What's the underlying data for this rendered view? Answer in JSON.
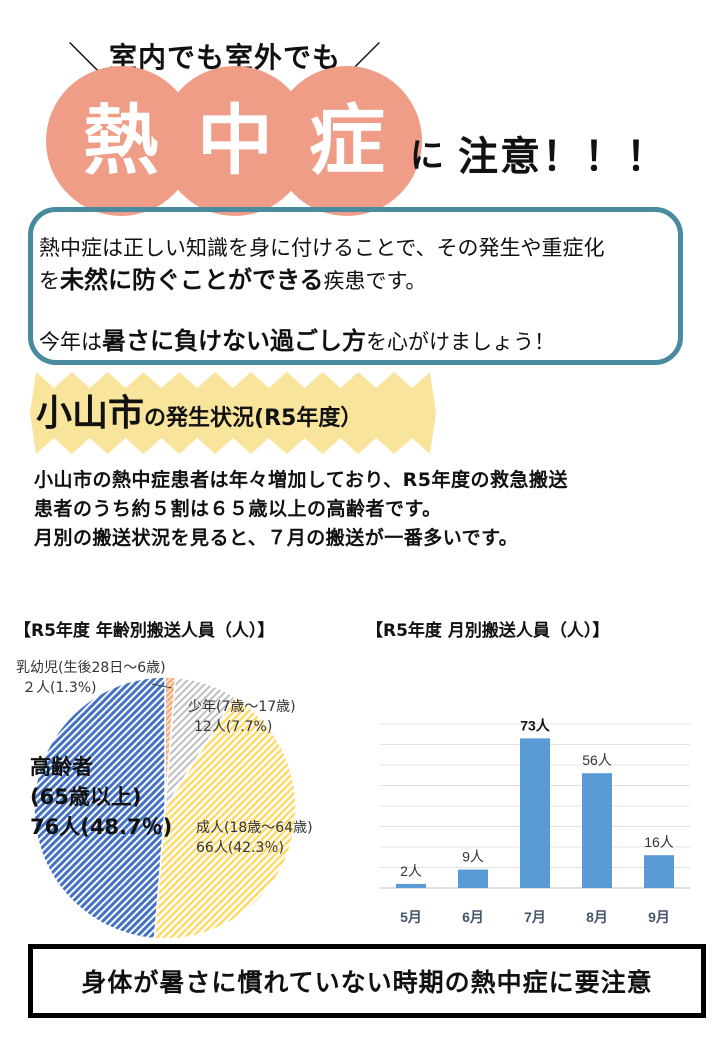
{
  "header": {
    "kicker": "室内でも室外でも",
    "circle_chars": [
      "熱",
      "中",
      "症"
    ],
    "ni": "に",
    "chuui": "注意！！！",
    "circle_color": "#ef9d86"
  },
  "intro": {
    "line1": "熱中症は正しい知識を身に付けることで、その発生や重症化",
    "line2_pre": "を",
    "line2_bold": "未然に防ぐことができる",
    "line2_post": "疾患です。",
    "line3_pre": "今年は",
    "line3_bold": "暑さに負けない過ごし方",
    "line3_post": "を心がけましょう！",
    "border_color": "#4a8aa0"
  },
  "section": {
    "big": "小山市",
    "small": "の発生状況(R5年度）",
    "star_color": "#f8e49a"
  },
  "description": {
    "line1": "小山市の熱中症患者は年々増加しており、R5年度の救急搬送",
    "line2": "患者のうち約５割は６５歳以上の高齢者です。",
    "line3": "月別の搬送状況を見ると、７月の搬送が一番多いです。"
  },
  "chart_data": [
    {
      "type": "pie",
      "title": "【R5年度  年齢別搬送人員（人）】",
      "slices": [
        {
          "name": "乳幼児(生後28日～6歳)",
          "value": 2,
          "percent": 1.3,
          "label_count": "２人(1.3%)",
          "color": "#f4b183"
        },
        {
          "name": "少年(7歳～17歳)",
          "value": 12,
          "percent": 7.7,
          "label_count": "12人(7.7%)",
          "color": "#bfbfbf"
        },
        {
          "name": "成人(18歳～64歳)",
          "value": 66,
          "percent": 42.3,
          "label_count": "66人(42.3％)",
          "color": "#ffd966"
        },
        {
          "name": "高齢者",
          "name2": "(65歳以上)",
          "value": 76,
          "percent": 48.7,
          "label_count": "76人(48.7％)",
          "color": "#4472c4"
        }
      ]
    },
    {
      "type": "bar",
      "title": "【R5年度  月別搬送人員（人）】",
      "categories": [
        "5月",
        "6月",
        "7月",
        "8月",
        "9月"
      ],
      "values": [
        2,
        9,
        73,
        56,
        16
      ],
      "labels": [
        "2人",
        "9人",
        "73人",
        "56人",
        "16人"
      ],
      "ylim": [
        0,
        80
      ],
      "grid": true,
      "color": "#5b9bd5"
    }
  ],
  "banner": {
    "text": "身体が暑さに慣れていない時期の熱中症に要注意"
  }
}
